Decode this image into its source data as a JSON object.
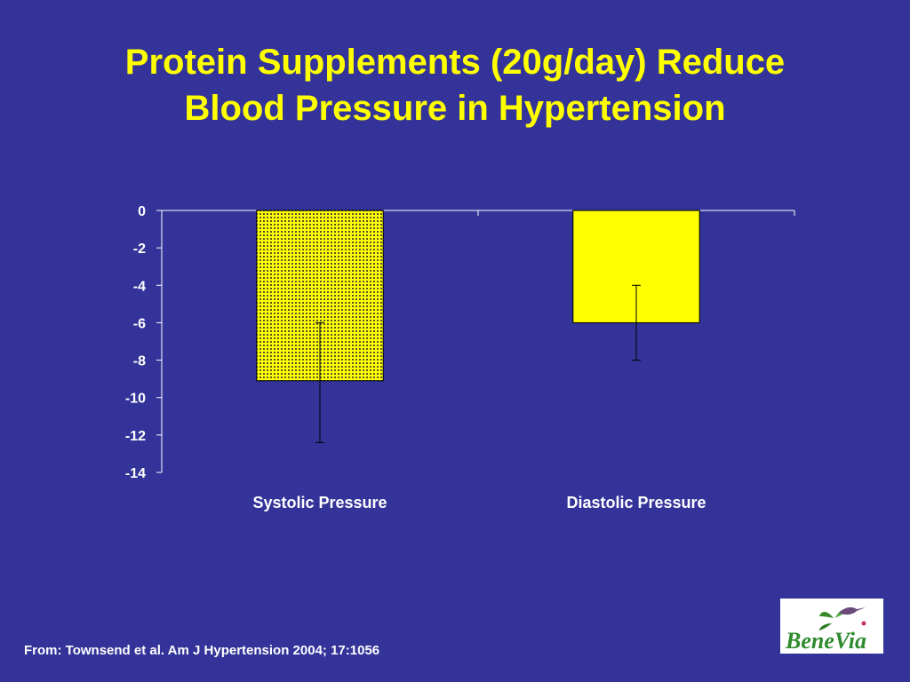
{
  "slide": {
    "title_line1": "Protein Supplements (20g/day) Reduce",
    "title_line2": "Blood Pressure in Hypertension",
    "source": "From: Townsend et al. Am J Hypertension 2004; 17:1056",
    "logo_text": "BeneVia"
  },
  "colors": {
    "background": "#333399",
    "title": "#ffff00",
    "bar_fill": "#ffff00",
    "pattern_dot": "#555533"
  },
  "chart_data": {
    "type": "bar",
    "categories": [
      "Systolic Pressure",
      "Diastolic Pressure"
    ],
    "values": [
      -9.1,
      -6.0
    ],
    "error_low": [
      -12.4,
      -8.0
    ],
    "error_high": [
      -6.0,
      -4.0
    ],
    "bar_patterns": [
      "dotted",
      "solid"
    ],
    "ylim": [
      -14,
      0
    ],
    "yticks": [
      0,
      -2,
      -4,
      -6,
      -8,
      -10,
      -12,
      -14
    ],
    "ytick_labels": [
      "0",
      "-2",
      "-4",
      "-6",
      "-8",
      "-10",
      "-12",
      "-14"
    ],
    "grid": false,
    "legend": "none"
  }
}
